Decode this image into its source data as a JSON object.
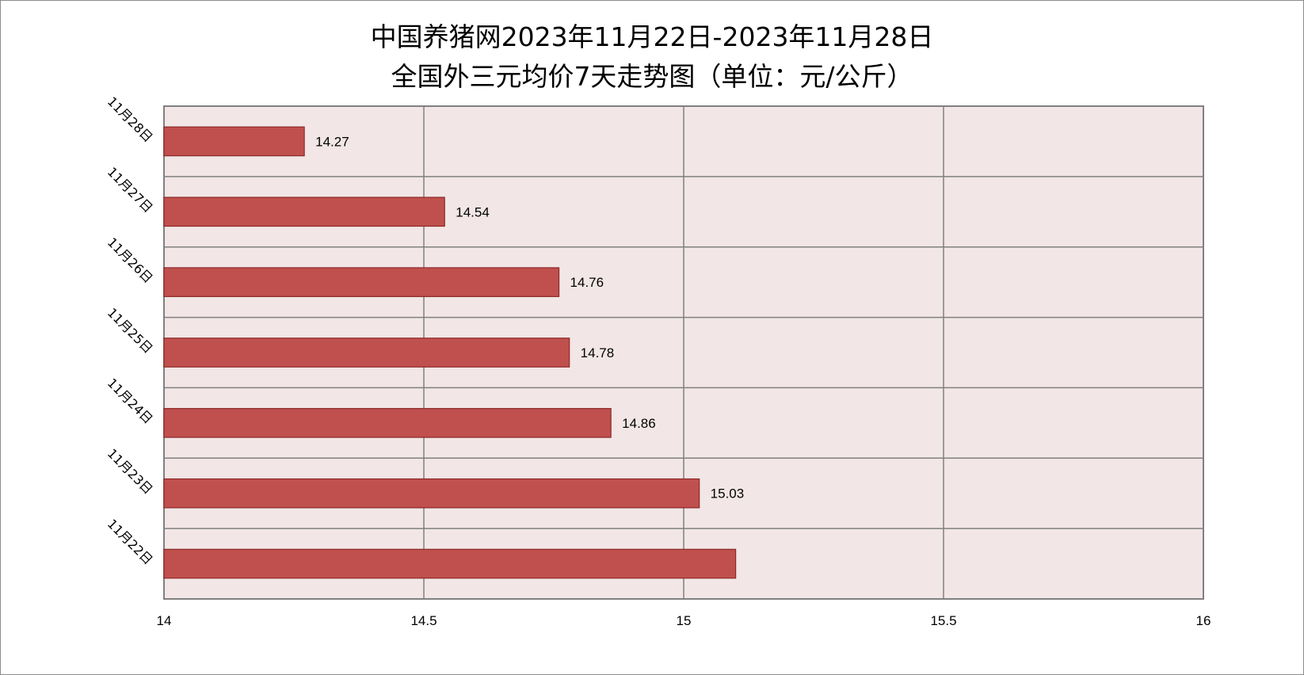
{
  "chart_data": {
    "type": "bar",
    "orientation": "horizontal",
    "title": "中国养猪网2023年11月22日-2023年11月28日",
    "subtitle": "全国外三元均价7天走势图（单位：元/公斤）",
    "categories": [
      "11月28日",
      "11月27日",
      "11月26日",
      "11月25日",
      "11月24日",
      "11月23日",
      "11月22日"
    ],
    "values": [
      14.27,
      14.54,
      14.76,
      14.78,
      14.86,
      15.03,
      15.1
    ],
    "data_labels": [
      "14.27",
      "14.54",
      "14.76",
      "14.78",
      "14.86",
      "15.03",
      ""
    ],
    "xlim": [
      14,
      16
    ],
    "xticks": [
      14,
      14.5,
      15,
      15.5,
      16
    ],
    "xtick_labels": [
      "14",
      "14.5",
      "15",
      "15.5",
      "16"
    ],
    "grid": true,
    "colors": {
      "bar": "#c0504d",
      "bar_border": "#8b2a28",
      "plot_bg": "#f2e6e6",
      "grid": "#808080"
    }
  }
}
